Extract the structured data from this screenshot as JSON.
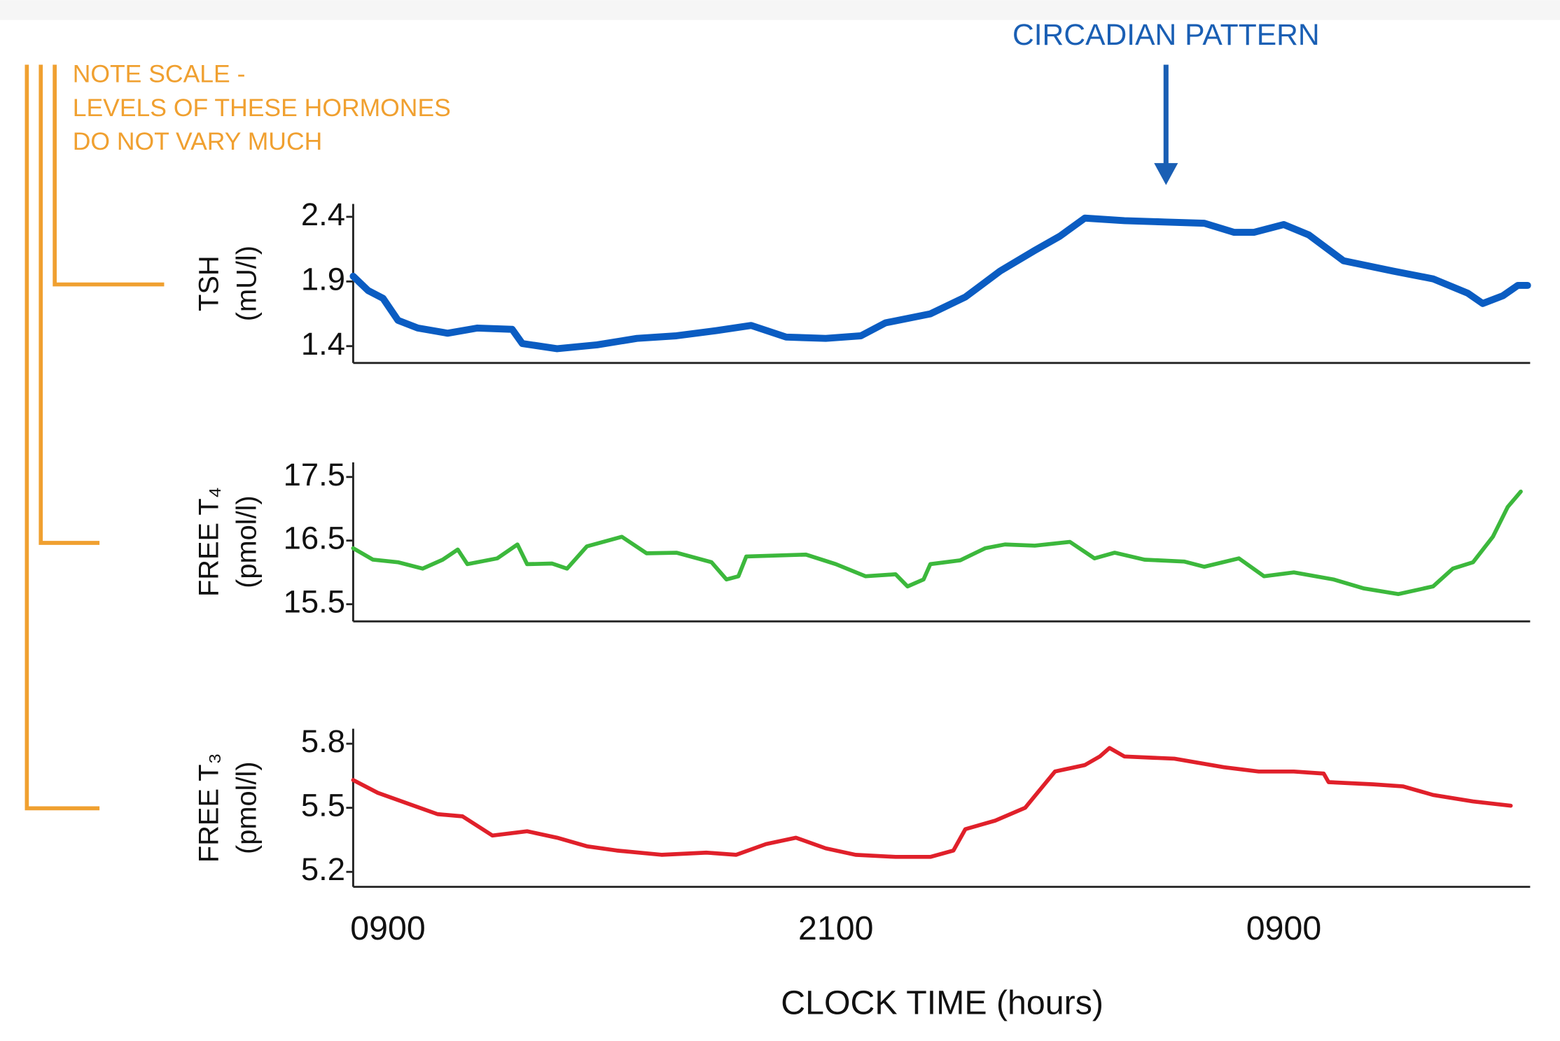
{
  "annotations": {
    "top": "CIRCADIAN PATTERN",
    "note": [
      "NOTE SCALE -",
      "LEVELS OF THESE HORMONES",
      "DO NOT VARY MUCH"
    ]
  },
  "chart_data": [
    {
      "type": "line",
      "ylabel": [
        "TSH",
        "(mU/l)"
      ],
      "color": "#0a5cc2",
      "x": [
        -0.93,
        -0.53,
        -0.13,
        0.27,
        0.8,
        1.6,
        2.4,
        3.33,
        3.6,
        4.53,
        5.6,
        6.67,
        7.73,
        8.8,
        9.73,
        10.67,
        11.73,
        12.67,
        13.33,
        14.53,
        15.47,
        16.4,
        17.33,
        18,
        18.67,
        19.73,
        20.8,
        21.87,
        22.67,
        23.2,
        24,
        24.67,
        25.6,
        26.93,
        28,
        28.93,
        29.33,
        29.87,
        30.27,
        30.53
      ],
      "values": [
        1.94,
        1.83,
        1.77,
        1.6,
        1.54,
        1.5,
        1.54,
        1.53,
        1.42,
        1.38,
        1.41,
        1.46,
        1.48,
        1.52,
        1.56,
        1.47,
        1.46,
        1.48,
        1.58,
        1.65,
        1.78,
        1.98,
        2.14,
        2.25,
        2.39,
        2.37,
        2.36,
        2.35,
        2.28,
        2.28,
        2.34,
        2.26,
        2.06,
        1.98,
        1.92,
        1.81,
        1.73,
        1.79,
        1.87,
        1.87
      ],
      "xlim": [
        -0.93,
        30.6
      ],
      "ylim": [
        1.27,
        2.5
      ],
      "yticks": [
        1.4,
        1.9,
        2.4
      ]
    },
    {
      "type": "line",
      "ylabel": [
        "FREE T₄",
        "(pmol/l)"
      ],
      "color": "#3cb83c",
      "x": [
        -0.93,
        -0.4,
        0.27,
        0.93,
        1.47,
        1.87,
        2.13,
        2.93,
        3.47,
        3.73,
        4.4,
        4.8,
        5.33,
        6.27,
        6.93,
        7.73,
        8.67,
        9.07,
        9.39,
        9.6,
        11.2,
        12,
        12.8,
        13.6,
        13.92,
        14.35,
        14.53,
        15.33,
        16,
        16.53,
        17.33,
        18.27,
        18.93,
        19.47,
        20.27,
        21.33,
        21.87,
        22.8,
        23.47,
        24.27,
        25.33,
        26.13,
        27.07,
        28,
        28.53,
        29.07,
        29.6,
        30,
        30.35
      ],
      "values": [
        16.38,
        16.2,
        16.16,
        16.06,
        16.2,
        16.36,
        16.13,
        16.22,
        16.44,
        16.13,
        16.14,
        16.06,
        16.41,
        16.56,
        16.3,
        16.31,
        16.16,
        15.89,
        15.94,
        16.25,
        16.28,
        16.13,
        15.94,
        15.97,
        15.78,
        15.89,
        16.13,
        16.19,
        16.38,
        16.44,
        16.42,
        16.48,
        16.22,
        16.31,
        16.2,
        16.17,
        16.09,
        16.22,
        15.94,
        16.0,
        15.89,
        15.75,
        15.66,
        15.78,
        16.06,
        16.16,
        16.56,
        17.03,
        17.27
      ],
      "xlim": [
        -0.93,
        30.6
      ],
      "ylim": [
        15.23,
        17.73
      ],
      "yticks": [
        15.5,
        16.5,
        17.5
      ]
    },
    {
      "type": "line",
      "ylabel": [
        "FREE T₃",
        "(pmol/l)"
      ],
      "color": "#e0202a",
      "x": [
        -0.93,
        -0.27,
        0.53,
        1.33,
        2,
        2.8,
        3.73,
        4.53,
        5.33,
        6.13,
        7.33,
        8.53,
        9.33,
        10.13,
        10.93,
        11.73,
        12.53,
        13.6,
        14.53,
        15.15,
        15.47,
        16.27,
        17.07,
        17.87,
        18.67,
        19.07,
        19.33,
        19.73,
        21.07,
        22.4,
        23.33,
        24.27,
        25.07,
        25.2,
        26.4,
        27.2,
        28,
        29.07,
        30.08
      ],
      "values": [
        5.63,
        5.57,
        5.52,
        5.47,
        5.46,
        5.37,
        5.39,
        5.36,
        5.32,
        5.3,
        5.28,
        5.29,
        5.28,
        5.33,
        5.36,
        5.31,
        5.28,
        5.27,
        5.27,
        5.3,
        5.4,
        5.44,
        5.5,
        5.67,
        5.7,
        5.74,
        5.78,
        5.74,
        5.73,
        5.69,
        5.67,
        5.67,
        5.66,
        5.62,
        5.61,
        5.6,
        5.56,
        5.53,
        5.51
      ],
      "xlim": [
        -0.93,
        30.6
      ],
      "ylim": [
        5.13,
        5.87
      ],
      "yticks": [
        5.2,
        5.5,
        5.8
      ],
      "xticks": [
        {
          "value": 0,
          "label": "0900"
        },
        {
          "value": 12,
          "label": "2100"
        },
        {
          "value": 24,
          "label": "0900"
        }
      ],
      "xlabel": "CLOCK TIME (hours)"
    }
  ]
}
